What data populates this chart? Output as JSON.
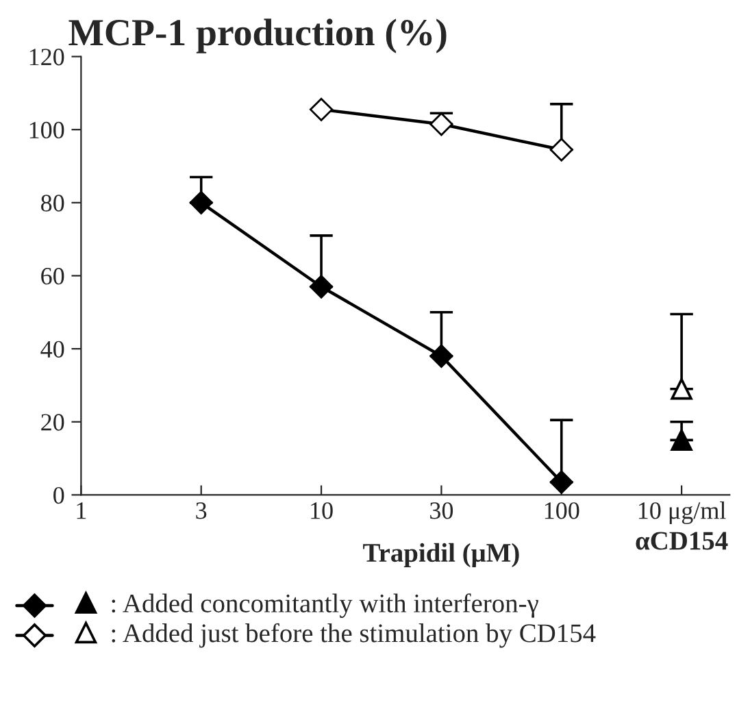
{
  "chart_data": {
    "type": "line",
    "title": "MCP-1 production (%)",
    "xlabel": "Trapidil (μM)",
    "categories": [
      "1",
      "3",
      "10",
      "30",
      "100",
      "10 μg/ml"
    ],
    "series": [
      {
        "color": "#000000",
        "marker": "diamond",
        "values": [
          null,
          80,
          57,
          38,
          3.5,
          null
        ],
        "errors": [
          null,
          [
            80,
            87
          ],
          [
            57,
            71
          ],
          [
            38,
            50
          ],
          [
            3.5,
            20.5
          ],
          null
        ]
      },
      {
        "color": "#000000",
        "marker": "diamond open",
        "values": [
          null,
          null,
          105.5,
          101.5,
          94.5,
          null
        ],
        "errors": [
          null,
          null,
          null,
          [
            101.5,
            104.5
          ],
          [
            94.5,
            107
          ],
          null
        ]
      },
      {
        "name": ": Added concomitantly with interferon-γ",
        "type": "scatter",
        "color": "#000000",
        "marker": "triangle",
        "values": [
          null,
          null,
          null,
          null,
          null,
          15
        ],
        "errors": [
          null,
          null,
          null,
          null,
          null,
          [
            15,
            20
          ]
        ]
      },
      {
        "name": ": Added just before the stimulation by CD154",
        "type": "scatter",
        "color": "#000000",
        "marker": "triangle open",
        "values": [
          null,
          null,
          null,
          null,
          null,
          29
        ],
        "errors": [
          null,
          null,
          null,
          null,
          null,
          [
            29,
            49.5
          ]
        ]
      }
    ],
    "ylim": [
      0,
      120
    ],
    "yticks": [
      0,
      20,
      40,
      60,
      80,
      100,
      120
    ],
    "annotations": [
      "αCD154"
    ],
    "grid": false,
    "legend": "bottom"
  }
}
